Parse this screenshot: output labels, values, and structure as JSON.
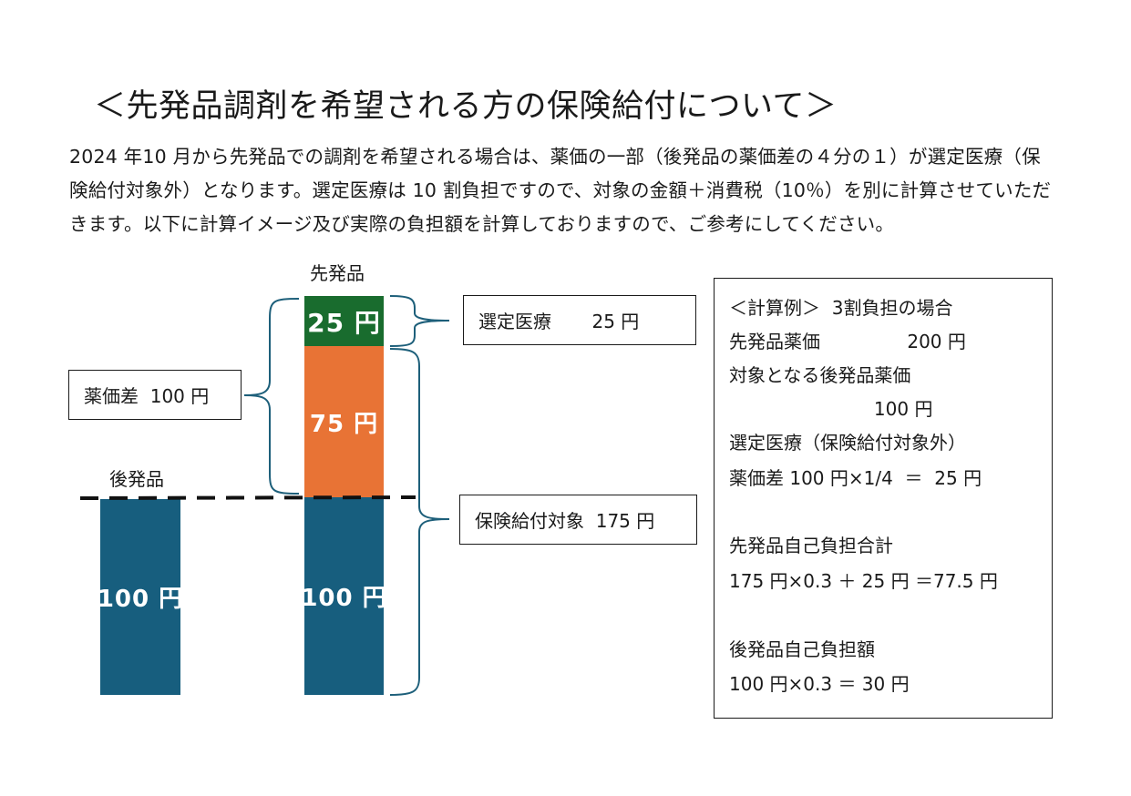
{
  "title": "＜先発品調剤を希望される方の保険給付について＞",
  "intro_lines": [
    "2024 年10 月から先発品での調剤を希望される場合は、薬価の一部（後発品の薬価差の４分の１）が選定医療（保",
    "険給付対象外）となります。選定医療は 10 割負担ですので、対象の金額＋消費税（10％）を別に計算させていただ",
    "きます。以下に計算イメージ及び実際の負担額を計算しておりますので、ご参考にしてください。"
  ],
  "diagram": {
    "generic_label": "後発品",
    "brand_label": "先発品",
    "generic_bar": "100 円",
    "brand_bars": {
      "top": "25 円",
      "middle": "75 円",
      "bottom": "100 円"
    },
    "callout_price_diff": "薬価差  100 円",
    "callout_selected": "選定医療       25 円",
    "callout_insured": "保険給付対象  175 円",
    "colors": {
      "bottom": "#175e7e",
      "middle": "#e87335",
      "top": "#196c2e",
      "brace": "#1d5f7a"
    }
  },
  "calc_example": {
    "lines": [
      "＜計算例＞  3割負担の場合",
      "先発品薬価               200 円",
      "対象となる後発品薬価",
      "                         100 円",
      "選定医療（保険給付対象外）",
      "薬価差 100 円×1/4  ＝  25 円",
      "",
      "先発品自己負担合計",
      "175 円×0.3 ＋ 25 円 ＝77.5 円",
      "",
      "後発品自己負担額",
      "100 円×0.3 ＝ 30 円"
    ]
  }
}
